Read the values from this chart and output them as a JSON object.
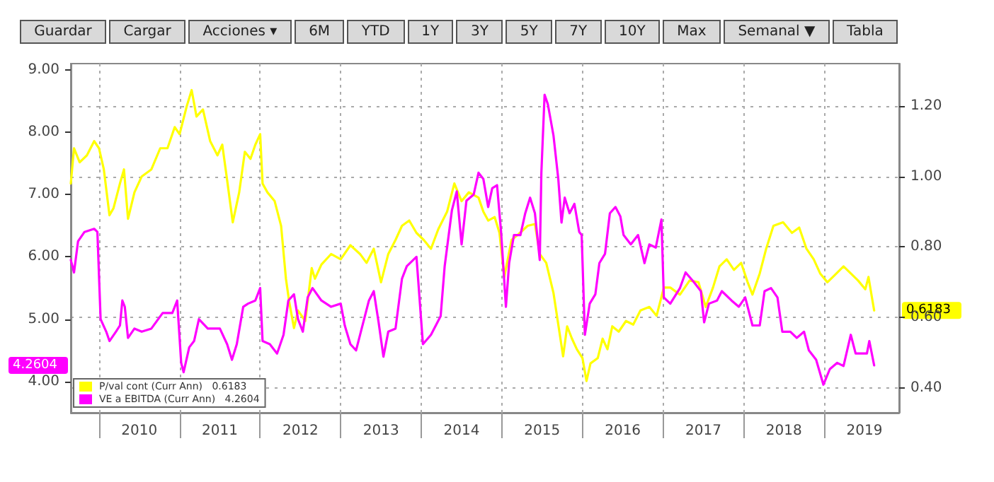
{
  "chart_data": {
    "type": "line",
    "annotations": [
      "Guardar",
      "Cargar",
      "Acciones ▾",
      "6M",
      "YTD",
      "1Y",
      "3Y",
      "5Y",
      "7Y",
      "10Y",
      "Max",
      "Semanal ▼",
      "Tabla",
      "0.6183",
      "4.2604"
    ],
    "series": [
      {
        "name": "P/val cont (Curr Ann)   0.6183",
        "color": "#ffff00",
        "axis": "y2",
        "x": [
          2009.65,
          2009.69,
          2009.76,
          2009.85,
          2009.94,
          2010.0,
          2010.06,
          2010.13,
          2010.18,
          2010.26,
          2010.31,
          2010.36,
          2010.44,
          2010.53,
          2010.65,
          2010.76,
          2010.85,
          2010.94,
          2011.0,
          2011.09,
          2011.15,
          2011.21,
          2011.29,
          2011.38,
          2011.47,
          2011.53,
          2011.59,
          2011.66,
          2011.74,
          2011.81,
          2011.88,
          2011.94,
          2012.0,
          2012.03,
          2012.09,
          2012.18,
          2012.26,
          2012.32,
          2012.36,
          2012.42,
          2012.47,
          2012.56,
          2012.64,
          2012.68,
          2012.76,
          2012.88,
          2013.0,
          2013.12,
          2013.24,
          2013.32,
          2013.41,
          2013.5,
          2013.59,
          2013.68,
          2013.76,
          2013.85,
          2013.94,
          2014.03,
          2014.12,
          2014.21,
          2014.32,
          2014.41,
          2014.5,
          2014.59,
          2014.71,
          2014.77,
          2014.83,
          2014.91,
          2014.97,
          2015.03,
          2015.12,
          2015.2,
          2015.32,
          2015.41,
          2015.47,
          2015.55,
          2015.64,
          2015.7,
          2015.76,
          2015.81,
          2015.87,
          2015.93,
          2016.0,
          2016.05,
          2016.1,
          2016.19,
          2016.25,
          2016.31,
          2016.37,
          2016.45,
          2016.54,
          2016.63,
          2016.72,
          2016.83,
          2016.92,
          2017.01,
          2017.09,
          2017.21,
          2017.33,
          2017.44,
          2017.53,
          2017.62,
          2017.7,
          2017.79,
          2017.88,
          2017.97,
          2018.05,
          2018.11,
          2018.2,
          2018.28,
          2018.37,
          2018.49,
          2018.6,
          2018.69,
          2018.78,
          2018.87,
          2018.95,
          2019.04,
          2019.13,
          2019.24,
          2019.33,
          2019.42,
          2019.51,
          2019.55,
          2019.59,
          2019.62
        ],
        "values": [
          0.98,
          1.08,
          1.04,
          1.06,
          1.1,
          1.08,
          1.02,
          0.89,
          0.91,
          0.98,
          1.02,
          0.88,
          0.955,
          1.0,
          1.02,
          1.08,
          1.08,
          1.14,
          1.12,
          1.2,
          1.245,
          1.17,
          1.19,
          1.1,
          1.06,
          1.09,
          0.99,
          0.87,
          0.955,
          1.07,
          1.05,
          1.09,
          1.12,
          0.98,
          0.955,
          0.93,
          0.86,
          0.71,
          0.645,
          0.57,
          0.62,
          0.59,
          0.74,
          0.71,
          0.75,
          0.78,
          0.765,
          0.805,
          0.78,
          0.755,
          0.795,
          0.7,
          0.78,
          0.82,
          0.86,
          0.875,
          0.84,
          0.82,
          0.795,
          0.85,
          0.9,
          0.98,
          0.93,
          0.955,
          0.94,
          0.9,
          0.875,
          0.885,
          0.84,
          0.715,
          0.82,
          0.835,
          0.86,
          0.865,
          0.78,
          0.755,
          0.67,
          0.58,
          0.49,
          0.575,
          0.54,
          0.51,
          0.485,
          0.42,
          0.47,
          0.485,
          0.54,
          0.51,
          0.575,
          0.56,
          0.59,
          0.58,
          0.62,
          0.63,
          0.605,
          0.685,
          0.685,
          0.665,
          0.705,
          0.7,
          0.63,
          0.685,
          0.745,
          0.765,
          0.735,
          0.755,
          0.7,
          0.665,
          0.725,
          0.795,
          0.86,
          0.87,
          0.84,
          0.855,
          0.795,
          0.765,
          0.725,
          0.7,
          0.72,
          0.745,
          0.725,
          0.705,
          0.68,
          0.715,
          0.66,
          0.62
        ]
      },
      {
        "name": "VE a EBITDA (Curr Ann)   4.2604",
        "color": "#ff00ff",
        "x": [
          2009.65,
          2009.69,
          2009.74,
          2009.82,
          2009.94,
          2009.98,
          2010.02,
          2010.09,
          2010.13,
          2010.21,
          2010.26,
          2010.29,
          2010.32,
          2010.36,
          2010.44,
          2010.53,
          2010.65,
          2010.79,
          2010.91,
          2010.97,
          2011.02,
          2011.05,
          2011.12,
          2011.18,
          2011.24,
          2011.35,
          2011.5,
          2011.59,
          2011.65,
          2011.71,
          2011.79,
          2011.85,
          2011.94,
          2012.0,
          2012.03,
          2012.12,
          2012.21,
          2012.29,
          2012.35,
          2012.42,
          2012.47,
          2012.53,
          2012.59,
          2012.65,
          2012.76,
          2012.88,
          2013.0,
          2013.05,
          2013.12,
          2013.19,
          2013.26,
          2013.35,
          2013.41,
          2013.47,
          2013.53,
          2013.59,
          2013.68,
          2013.76,
          2013.82,
          2013.94,
          2014.02,
          2014.12,
          2014.24,
          2014.29,
          2014.38,
          2014.44,
          2014.5,
          2014.56,
          2014.65,
          2014.71,
          2014.77,
          2014.83,
          2014.88,
          2014.94,
          2014.99,
          2015.05,
          2015.09,
          2015.15,
          2015.23,
          2015.29,
          2015.35,
          2015.41,
          2015.47,
          2015.49,
          2015.53,
          2015.57,
          2015.64,
          2015.7,
          2015.74,
          2015.78,
          2015.84,
          2015.9,
          2015.96,
          2015.99,
          2016.03,
          2016.09,
          2016.16,
          2016.21,
          2016.28,
          2016.34,
          2016.41,
          2016.47,
          2016.51,
          2016.6,
          2016.69,
          2016.77,
          2016.83,
          2016.91,
          2016.98,
          2017.01,
          2017.09,
          2017.21,
          2017.28,
          2017.38,
          2017.47,
          2017.51,
          2017.57,
          2017.67,
          2017.73,
          2017.85,
          2017.94,
          2018.02,
          2018.11,
          2018.2,
          2018.26,
          2018.34,
          2018.42,
          2018.48,
          2018.58,
          2018.66,
          2018.75,
          2018.81,
          2018.9,
          2018.99,
          2019.07,
          2019.16,
          2019.24,
          2019.33,
          2019.39,
          2019.48,
          2019.53,
          2019.56,
          2019.62
        ],
        "values": [
          5.95,
          5.75,
          6.25,
          6.4,
          6.45,
          6.4,
          5.0,
          4.8,
          4.65,
          4.8,
          4.9,
          5.3,
          5.2,
          4.7,
          4.85,
          4.8,
          4.85,
          5.1,
          5.1,
          5.3,
          4.3,
          4.15,
          4.55,
          4.65,
          5.0,
          4.85,
          4.85,
          4.6,
          4.35,
          4.6,
          5.2,
          5.25,
          5.3,
          5.5,
          4.65,
          4.6,
          4.45,
          4.75,
          5.3,
          5.4,
          5.0,
          4.8,
          5.35,
          5.5,
          5.3,
          5.2,
          5.25,
          4.9,
          4.6,
          4.5,
          4.85,
          5.3,
          5.45,
          4.95,
          4.4,
          4.8,
          4.85,
          5.65,
          5.85,
          6.0,
          4.6,
          4.75,
          5.05,
          5.85,
          6.75,
          7.05,
          6.2,
          6.9,
          7.0,
          7.35,
          7.25,
          6.8,
          7.1,
          7.15,
          6.4,
          5.2,
          5.9,
          6.35,
          6.35,
          6.7,
          6.95,
          6.7,
          5.95,
          7.35,
          8.6,
          8.45,
          7.95,
          7.25,
          6.55,
          6.95,
          6.7,
          6.85,
          6.4,
          6.35,
          4.75,
          5.25,
          5.4,
          5.9,
          6.05,
          6.7,
          6.8,
          6.65,
          6.35,
          6.2,
          6.35,
          5.9,
          6.2,
          6.15,
          6.6,
          5.35,
          5.25,
          5.5,
          5.75,
          5.6,
          5.45,
          4.95,
          5.25,
          5.3,
          5.45,
          5.3,
          5.2,
          5.35,
          4.9,
          4.9,
          5.45,
          5.5,
          5.35,
          4.8,
          4.8,
          4.7,
          4.8,
          4.5,
          4.35,
          3.95,
          4.2,
          4.3,
          4.25,
          4.75,
          4.45,
          4.45,
          4.45,
          4.65,
          4.26
        ]
      }
    ],
    "xlim": [
      2009.65,
      2019.93
    ],
    "xticks": [
      {
        "value": 2010,
        "label": null
      },
      {
        "value": 2010.5,
        "label": "2010"
      },
      {
        "value": 2011,
        "label": null
      },
      {
        "value": 2011.5,
        "label": "2011"
      },
      {
        "value": 2012,
        "label": null
      },
      {
        "value": 2012.5,
        "label": "2012"
      },
      {
        "value": 2013,
        "label": null
      },
      {
        "value": 2013.5,
        "label": "2013"
      },
      {
        "value": 2014,
        "label": null
      },
      {
        "value": 2014.5,
        "label": "2014"
      },
      {
        "value": 2015,
        "label": null
      },
      {
        "value": 2015.5,
        "label": "2015"
      },
      {
        "value": 2016,
        "label": null
      },
      {
        "value": 2016.5,
        "label": "2016"
      },
      {
        "value": 2017,
        "label": null
      },
      {
        "value": 2017.5,
        "label": "2017"
      },
      {
        "value": 2018,
        "label": null
      },
      {
        "value": 2018.5,
        "label": "2018"
      },
      {
        "value": 2019,
        "label": null
      },
      {
        "value": 2019.5,
        "label": "2019"
      }
    ],
    "ylim": [
      3.5,
      9.1
    ],
    "yticks": [
      {
        "value": 4,
        "label": "4.00"
      },
      {
        "value": 5,
        "label": "5.00"
      },
      {
        "value": 6,
        "label": "6.00"
      },
      {
        "value": 7,
        "label": "7.00"
      },
      {
        "value": 8,
        "label": "8.00"
      },
      {
        "value": 9,
        "label": "9.00"
      }
    ],
    "y2lim": [
      0.33,
      1.32
    ],
    "y2ticks": [
      {
        "value": 0.4,
        "label": "0.40"
      },
      {
        "value": 0.6,
        "label": "0.60"
      },
      {
        "value": 0.8,
        "label": "0.80"
      },
      {
        "value": 1.0,
        "label": "1.00"
      },
      {
        "value": 1.2,
        "label": "1.20"
      }
    ],
    "grid": true,
    "legend": "bottom left",
    "marker": "none",
    "line_style": "solid"
  }
}
